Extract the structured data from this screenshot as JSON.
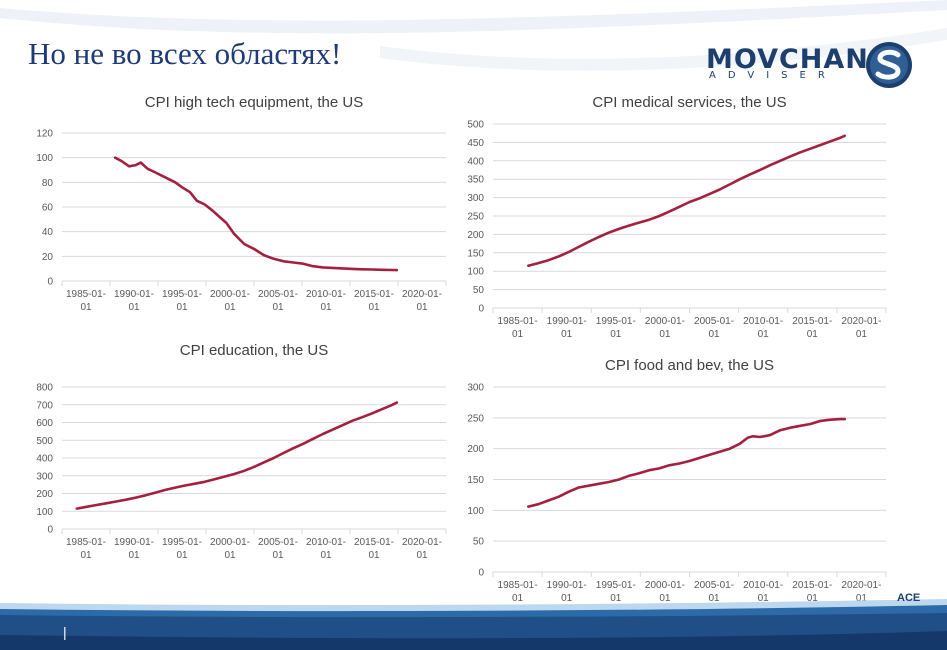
{
  "title": "Но не во всех областях!",
  "logo": {
    "main": "MOVCHAN",
    "sub": "ADVISER"
  },
  "page_marker": "|",
  "corner_text": "ACE",
  "colors": {
    "series": "#a3213f",
    "title": "#1f3a78",
    "brand": "#1d3f6e",
    "band": "#1f4f86"
  },
  "chart_data": [
    {
      "type": "line",
      "title": "CPI high tech equipment, the US",
      "x_ticks": [
        "1985-01-01",
        "1990-01-01",
        "1995-01-01",
        "2000-01-01",
        "2005-01-01",
        "2010-01-01",
        "2015-01-01",
        "2020-01-01"
      ],
      "y_ticks": [
        0,
        20,
        40,
        60,
        80,
        100,
        120
      ],
      "xlim": [
        1983.5,
        2022.5
      ],
      "ylim": [
        0,
        120
      ],
      "series": [
        {
          "x": [
            1988.9,
            1989.6,
            1990.3,
            1991.0,
            1991.5,
            1992.2,
            1993.0,
            1994.0,
            1995.0,
            1995.7,
            1996.5,
            1997.2,
            1998.0,
            1998.8,
            1999.5,
            2000.2,
            2001.0,
            2002.0,
            2003.0,
            2004.0,
            2005.0,
            2006.0,
            2007.0,
            2008.0,
            2009.0,
            2010.0,
            2011.0,
            2012.0,
            2013.0,
            2014.0,
            2015.0,
            2016.0,
            2017.0,
            2017.5
          ],
          "y": [
            100,
            97,
            93,
            94,
            96,
            91,
            88,
            84,
            80,
            76,
            72,
            65,
            62,
            57,
            52,
            47,
            38,
            30,
            26,
            21,
            18,
            16,
            15,
            14,
            12,
            11,
            10.6,
            10.2,
            9.8,
            9.5,
            9.3,
            9.1,
            8.9,
            8.8
          ]
        }
      ]
    },
    {
      "type": "line",
      "title": "CPI medical services, the US",
      "x_ticks": [
        "1985-01-01",
        "1990-01-01",
        "1995-01-01",
        "2000-01-01",
        "2005-01-01",
        "2010-01-01",
        "2015-01-01",
        "2020-01-01"
      ],
      "y_ticks": [
        0,
        50,
        100,
        150,
        200,
        250,
        300,
        350,
        400,
        450,
        500
      ],
      "xlim": [
        1983.5,
        2022.5
      ],
      "ylim": [
        0,
        500
      ],
      "series": [
        {
          "x": [
            1987.0,
            1988.0,
            1989.0,
            1990.0,
            1991.0,
            1992.0,
            1993.0,
            1994.0,
            1995.0,
            1996.0,
            1997.0,
            1998.0,
            1999.0,
            2000.0,
            2001.0,
            2002.0,
            2003.0,
            2004.0,
            2005.0,
            2006.0,
            2007.0,
            2008.0,
            2009.0,
            2010.0,
            2011.0,
            2012.0,
            2013.0,
            2014.0,
            2015.0,
            2016.0,
            2017.0,
            2018.0,
            2018.4
          ],
          "y": [
            115,
            122,
            130,
            140,
            152,
            166,
            180,
            193,
            205,
            215,
            224,
            232,
            240,
            250,
            262,
            275,
            288,
            298,
            310,
            322,
            336,
            350,
            363,
            375,
            388,
            400,
            412,
            423,
            433,
            443,
            453,
            463,
            468
          ]
        }
      ]
    },
    {
      "type": "line",
      "title": "CPI education, the US",
      "x_ticks": [
        "1985-01-01",
        "1990-01-01",
        "1995-01-01",
        "2000-01-01",
        "2005-01-01",
        "2010-01-01",
        "2015-01-01",
        "2020-01-01"
      ],
      "y_ticks": [
        0,
        100,
        200,
        300,
        400,
        500,
        600,
        700,
        800
      ],
      "xlim": [
        1983.5,
        2022.5
      ],
      "ylim": [
        0,
        800
      ],
      "series": [
        {
          "x": [
            1985.0,
            1986.0,
            1987.0,
            1988.0,
            1989.0,
            1990.0,
            1991.0,
            1992.0,
            1993.0,
            1994.0,
            1995.0,
            1996.0,
            1997.0,
            1998.0,
            1999.0,
            2000.0,
            2001.0,
            2002.0,
            2003.0,
            2004.0,
            2005.0,
            2006.0,
            2007.0,
            2008.0,
            2009.0,
            2010.0,
            2011.0,
            2012.0,
            2013.0,
            2014.0,
            2015.0,
            2016.0,
            2017.0,
            2017.5
          ],
          "y": [
            115,
            125,
            135,
            145,
            155,
            165,
            177,
            190,
            205,
            220,
            233,
            245,
            255,
            266,
            280,
            295,
            310,
            328,
            350,
            375,
            400,
            428,
            455,
            480,
            508,
            535,
            560,
            585,
            610,
            630,
            652,
            675,
            698,
            712
          ]
        }
      ]
    },
    {
      "type": "line",
      "title": "CPI food and bev, the US",
      "x_ticks": [
        "1985-01-01",
        "1990-01-01",
        "1995-01-01",
        "2000-01-01",
        "2005-01-01",
        "2010-01-01",
        "2015-01-01",
        "2020-01-01"
      ],
      "y_ticks": [
        0,
        50,
        100,
        150,
        200,
        250,
        300
      ],
      "xlim": [
        1983.5,
        2022.5
      ],
      "ylim": [
        0,
        300
      ],
      "series": [
        {
          "x": [
            1987.0,
            1988.0,
            1989.0,
            1990.0,
            1991.0,
            1992.0,
            1993.0,
            1994.0,
            1995.0,
            1996.0,
            1997.0,
            1998.0,
            1999.0,
            2000.0,
            2001.0,
            2002.0,
            2003.0,
            2004.0,
            2005.0,
            2006.0,
            2007.0,
            2008.0,
            2008.8,
            2009.3,
            2010.0,
            2011.0,
            2012.0,
            2013.0,
            2014.0,
            2015.0,
            2016.0,
            2017.0,
            2018.0,
            2018.4
          ],
          "y": [
            106,
            110,
            116,
            122,
            130,
            137,
            140,
            143,
            146,
            150,
            156,
            160,
            165,
            168,
            173,
            176,
            180,
            185,
            190,
            195,
            200,
            208,
            218,
            220,
            219,
            222,
            230,
            234,
            237,
            240,
            245,
            247,
            248,
            248
          ]
        }
      ]
    }
  ]
}
